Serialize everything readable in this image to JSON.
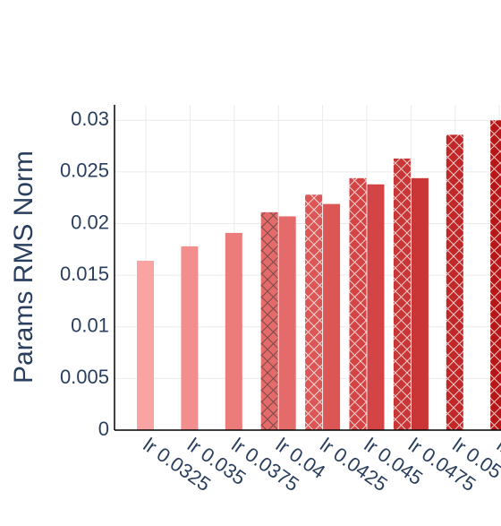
{
  "chart_data": {
    "type": "bar",
    "ylabel": "Params RMS Norm",
    "ylim": [
      0,
      0.0315
    ],
    "y_ticks": [
      "0",
      "0.005",
      "0.01",
      "0.015",
      "0.02",
      "0.025",
      "0.03"
    ],
    "y_tick_values": [
      0,
      0.005,
      0.01,
      0.015,
      0.02,
      0.025,
      0.03
    ],
    "categories": [
      "lr 0.0325",
      "lr 0.035",
      "lr 0.0375",
      "lr 0.04",
      "lr 0.0425",
      "lr 0.045",
      "lr 0.0475",
      "lr 0.05",
      "lr"
    ],
    "grid": true,
    "series": [
      {
        "pattern": "crosshatch",
        "values": [
          null,
          null,
          null,
          0.0211,
          0.0228,
          0.0244,
          0.0263,
          0.0286,
          0.03
        ]
      },
      {
        "pattern": "solid",
        "values": [
          0.0164,
          0.0178,
          0.0191,
          0.0207,
          0.0219,
          0.0238,
          0.0244,
          null,
          null
        ]
      }
    ],
    "category_colors": [
      "#f9a3a3",
      "#f28e8e",
      "#ec7b7b",
      "#e56a6a",
      "#dd5656",
      "#d44444",
      "#ca3535",
      "#c22626",
      "#b81616"
    ]
  }
}
